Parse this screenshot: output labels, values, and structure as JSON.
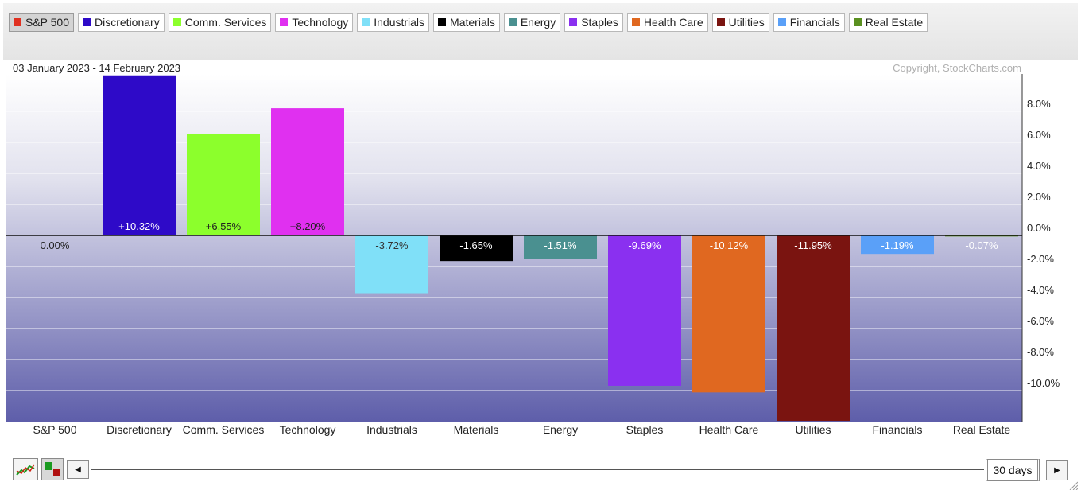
{
  "legend": [
    {
      "label": "S&P 500",
      "color": "#e03020",
      "active": true
    },
    {
      "label": "Discretionary",
      "color": "#2e0ac8"
    },
    {
      "label": "Comm. Services",
      "color": "#8cff2c"
    },
    {
      "label": "Technology",
      "color": "#e030f0"
    },
    {
      "label": "Industrials",
      "color": "#80e0f8"
    },
    {
      "label": "Materials",
      "color": "#000000"
    },
    {
      "label": "Energy",
      "color": "#4a9090"
    },
    {
      "label": "Staples",
      "color": "#8a30f0"
    },
    {
      "label": "Health Care",
      "color": "#e06820"
    },
    {
      "label": "Utilities",
      "color": "#7a1410"
    },
    {
      "label": "Financials",
      "color": "#5aa0f8"
    },
    {
      "label": "Real Estate",
      "color": "#5a9020"
    }
  ],
  "chart_data": {
    "type": "bar",
    "date_range": "03 January 2023 - 14 February 2023",
    "copyright": "Copyright, StockCharts.com",
    "categories": [
      "S&P 500",
      "Discretionary",
      "Comm. Services",
      "Technology",
      "Industrials",
      "Materials",
      "Energy",
      "Staples",
      "Health Care",
      "Utilities",
      "Financials",
      "Real Estate"
    ],
    "values": [
      0.0,
      10.32,
      6.55,
      8.2,
      -3.72,
      -1.65,
      -1.51,
      -9.69,
      -10.12,
      -11.95,
      -1.19,
      -0.07
    ],
    "value_labels": [
      "0.00%",
      "+10.32%",
      "+6.55%",
      "+8.20%",
      "-3.72%",
      "-1.65%",
      "-1.51%",
      "-9.69%",
      "-10.12%",
      "-11.95%",
      "-1.19%",
      "-0.07%"
    ],
    "colors": [
      "#e03020",
      "#2e0ac8",
      "#8cff2c",
      "#e030f0",
      "#80e0f8",
      "#000000",
      "#4a9090",
      "#8a30f0",
      "#e06820",
      "#7a1410",
      "#5aa0f8",
      "#5a9020"
    ],
    "y_ticks": [
      8,
      6,
      4,
      2,
      0,
      -2,
      -4,
      -6,
      -8,
      -10
    ],
    "y_tick_labels": [
      "8.0%",
      "6.0%",
      "4.0%",
      "2.0%",
      "0.0%",
      "-2.0%",
      "-4.0%",
      "-6.0%",
      "-8.0%",
      "-10.0%"
    ],
    "ylim": [
      -11.95,
      10.32
    ],
    "grid": true
  },
  "controls": {
    "range_label": "30 days"
  }
}
